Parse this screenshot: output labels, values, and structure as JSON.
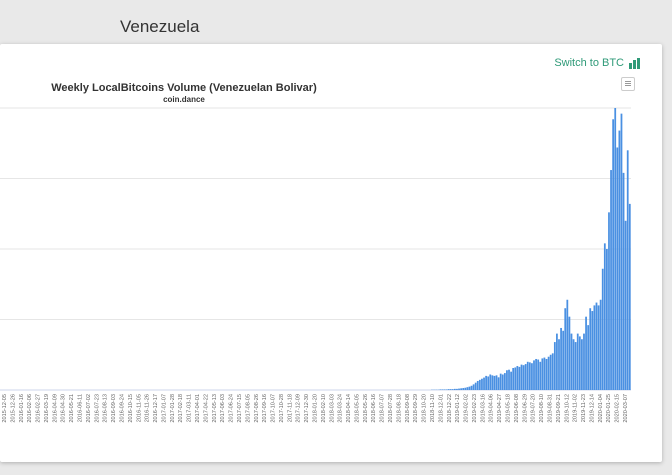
{
  "page": {
    "heading": "Venezuela"
  },
  "toolbar": {
    "switch_label": "Switch to BTC",
    "switch_icon": "bar-chart-icon",
    "menu_icon": "hamburger-menu-icon"
  },
  "colors": {
    "bar": "#4a90e2",
    "accent": "#2f9a78",
    "grid": "#e6e6e6"
  },
  "chart_data": {
    "type": "bar",
    "title": "Weekly LocalBitcoins Volume (Venezuelan Bolivar)",
    "subtitle": "coin.dance",
    "xlabel": "",
    "ylabel": "",
    "x_tick_labels": [
      "2015-12-05",
      "2015-12-26",
      "2016-01-16",
      "2016-02-06",
      "2016-02-27",
      "2016-03-19",
      "2016-04-09",
      "2016-04-30",
      "2016-05-21",
      "2016-06-11",
      "2016-07-02",
      "2016-07-23",
      "2016-08-13",
      "2016-09-03",
      "2016-09-24",
      "2016-10-15",
      "2016-11-05",
      "2016-11-26",
      "2016-12-17",
      "2017-01-07",
      "2017-01-28",
      "2017-02-18",
      "2017-03-11",
      "2017-04-01",
      "2017-04-22",
      "2017-05-13",
      "2017-06-03",
      "2017-06-24",
      "2017-07-15",
      "2017-08-05",
      "2017-08-26",
      "2017-09-16",
      "2017-10-07",
      "2017-10-28",
      "2017-11-18",
      "2017-12-09",
      "2017-12-30",
      "2018-01-20",
      "2018-02-10",
      "2018-03-03",
      "2018-03-24",
      "2018-04-14",
      "2018-05-05",
      "2018-05-26",
      "2018-06-16",
      "2018-07-07",
      "2018-07-28",
      "2018-08-18",
      "2018-09-08",
      "2018-09-29",
      "2018-10-20",
      "2018-11-10",
      "2018-12-01",
      "2018-12-22",
      "2019-01-12",
      "2019-02-02",
      "2019-02-23",
      "2019-03-16",
      "2019-04-06",
      "2019-04-27",
      "2019-05-18",
      "2019-06-08",
      "2019-06-29",
      "2019-07-20",
      "2019-08-10",
      "2019-08-31",
      "2019-09-21",
      "2019-10-12",
      "2019-11-02",
      "2019-11-23",
      "2019-12-14",
      "2020-01-04",
      "2020-01-25",
      "2020-02-15",
      "2020-03-07"
    ],
    "values": [
      0,
      0,
      0,
      0,
      0,
      0,
      0,
      0,
      0,
      0,
      0,
      0,
      0,
      0,
      0,
      0,
      0,
      0,
      0,
      0,
      0,
      0,
      0,
      0,
      0,
      0,
      0,
      0,
      0,
      0,
      0,
      0,
      0,
      0,
      0,
      0,
      0,
      0,
      0,
      0,
      0,
      0,
      0,
      0,
      0,
      0,
      0,
      0,
      0,
      0,
      0,
      0,
      0,
      0,
      0,
      0,
      0,
      0,
      0,
      0,
      0,
      0,
      0,
      0,
      0,
      0,
      0,
      0,
      0,
      0,
      0,
      0,
      0,
      0,
      0,
      0,
      0,
      0,
      0,
      0,
      0,
      0,
      0,
      0,
      0,
      0,
      0,
      0,
      0,
      0,
      0,
      0,
      0,
      0,
      0,
      0,
      0,
      0,
      0,
      0,
      0,
      0,
      0,
      0,
      0,
      0,
      0,
      0,
      0,
      0,
      0,
      0,
      0,
      0,
      0,
      0,
      0,
      0,
      0,
      0,
      0,
      0,
      0,
      0,
      0,
      0,
      0,
      0,
      0,
      0,
      0,
      0,
      0,
      0,
      0,
      0,
      0,
      0,
      0,
      0,
      0,
      0,
      0,
      0,
      0,
      0,
      0,
      0,
      0,
      0,
      0,
      0,
      0,
      0,
      0,
      0,
      0,
      0,
      0,
      0,
      0,
      0,
      0,
      0,
      0,
      0,
      0,
      0,
      0,
      0,
      0,
      0,
      0,
      0,
      0,
      0,
      0,
      0,
      0,
      0,
      0,
      0,
      0,
      0,
      0,
      0,
      0,
      0,
      0,
      0,
      0,
      0,
      0,
      0,
      0,
      0,
      0,
      0,
      0,
      0,
      0,
      0,
      0,
      0,
      0,
      0,
      0,
      0.001,
      0.001,
      0.001,
      0.001,
      0.002,
      0.002,
      0.002,
      0.002,
      0.003,
      0.003,
      0.003,
      0.004,
      0.004,
      0.005,
      0.006,
      0.007,
      0.008,
      0.01,
      0.012,
      0.015,
      0.02,
      0.026,
      0.032,
      0.036,
      0.04,
      0.044,
      0.05,
      0.048,
      0.055,
      0.052,
      0.05,
      0.052,
      0.045,
      0.058,
      0.055,
      0.06,
      0.07,
      0.072,
      0.065,
      0.078,
      0.08,
      0.085,
      0.082,
      0.09,
      0.088,
      0.092,
      0.1,
      0.098,
      0.095,
      0.105,
      0.11,
      0.108,
      0.1,
      0.112,
      0.115,
      0.11,
      0.118,
      0.125,
      0.13,
      0.17,
      0.2,
      0.18,
      0.22,
      0.21,
      0.29,
      0.32,
      0.26,
      0.2,
      0.18,
      0.17,
      0.2,
      0.19,
      0.18,
      0.2,
      0.26,
      0.23,
      0.29,
      0.28,
      0.3,
      0.31,
      0.3,
      0.32,
      0.43,
      0.52,
      0.5,
      0.63,
      0.78,
      0.96,
      1.0,
      0.86,
      0.92,
      0.98,
      0.77,
      0.6,
      0.85,
      0.66
    ],
    "ylim": [
      0,
      1
    ],
    "grid": true,
    "legend": "none"
  }
}
